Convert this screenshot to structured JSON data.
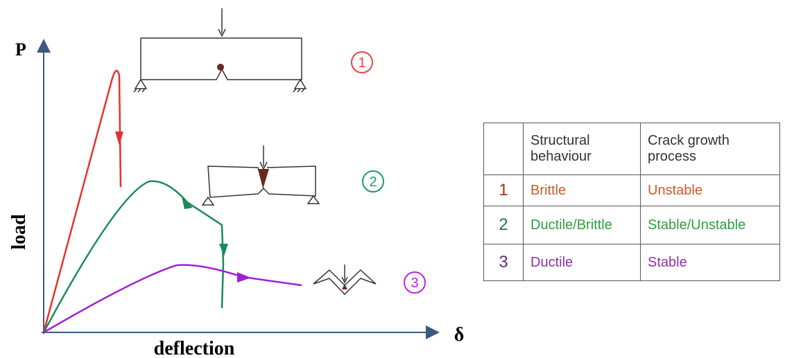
{
  "axes": {
    "y_symbol": "P",
    "y_label": "load",
    "x_label": "deflection",
    "x_symbol": "δ"
  },
  "curves": [
    {
      "label": "1"
    },
    {
      "label": "2"
    },
    {
      "label": "3"
    }
  ],
  "table": {
    "header": [
      "Structural behaviour",
      "Crack growth process"
    ],
    "rows": [
      [
        "1",
        "Brittle",
        "Unstable"
      ],
      [
        "2",
        "Ductile/Brittle",
        "Stable/Unstable"
      ],
      [
        "3",
        "Ductile",
        "Stable"
      ]
    ]
  }
}
